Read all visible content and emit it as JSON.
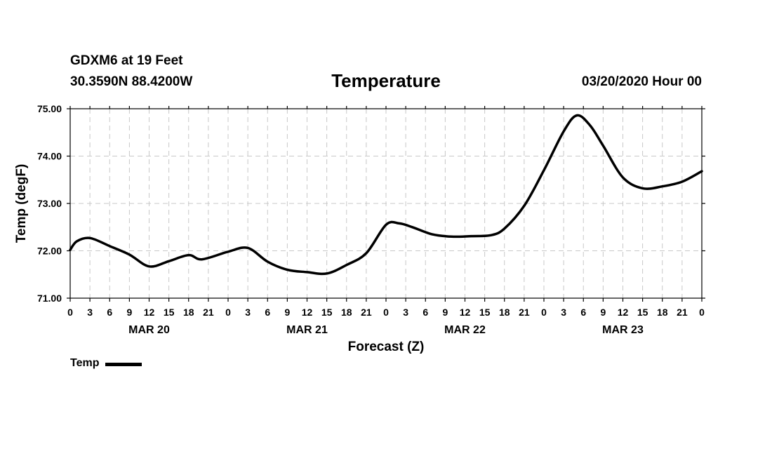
{
  "header": {
    "station": "GDXM6 at 19 Feet",
    "coords": "30.3590N 88.4200W",
    "title": "Temperature",
    "timestamp": "03/20/2020 Hour 00"
  },
  "legend": {
    "label": "Temp",
    "color": "#000000"
  },
  "chart_data": {
    "type": "line",
    "title": "Temperature",
    "xlabel": "Forecast (Z)",
    "ylabel": "Temp (degF)",
    "ylim": [
      71.0,
      75.0
    ],
    "yticks": [
      "71.00",
      "72.00",
      "73.00",
      "74.00",
      "75.00"
    ],
    "xlim": [
      0,
      96
    ],
    "x_tick_step_hours": 3,
    "x_tick_labels": [
      "0",
      "3",
      "6",
      "9",
      "12",
      "15",
      "18",
      "21",
      "0",
      "3",
      "6",
      "9",
      "12",
      "15",
      "18",
      "21",
      "0",
      "3",
      "6",
      "9",
      "12",
      "15",
      "18",
      "21",
      "0",
      "3",
      "6",
      "9",
      "12",
      "15",
      "18",
      "21",
      "0"
    ],
    "day_labels": [
      {
        "label": "MAR 20",
        "hour": 12
      },
      {
        "label": "MAR 21",
        "hour": 36
      },
      {
        "label": "MAR 22",
        "hour": 60
      },
      {
        "label": "MAR 23",
        "hour": 84
      }
    ],
    "grid": true,
    "series": [
      {
        "name": "Temp",
        "color": "#000000",
        "x": [
          0,
          1,
          3,
          6,
          9,
          12,
          15,
          18,
          20,
          24,
          27,
          30,
          33,
          36,
          39,
          42,
          45,
          48,
          50,
          52,
          55,
          58,
          61,
          64,
          66,
          69,
          72,
          75,
          77,
          79,
          81,
          84,
          87,
          90,
          93,
          96
        ],
        "y": [
          72.02,
          72.2,
          72.27,
          72.1,
          71.92,
          71.67,
          71.78,
          71.91,
          71.82,
          71.98,
          72.06,
          71.77,
          71.6,
          71.55,
          71.52,
          71.7,
          71.95,
          72.55,
          72.58,
          72.5,
          72.35,
          72.3,
          72.31,
          72.33,
          72.47,
          72.95,
          73.7,
          74.52,
          74.86,
          74.65,
          74.22,
          73.55,
          73.32,
          73.36,
          73.46,
          73.68
        ]
      }
    ]
  }
}
